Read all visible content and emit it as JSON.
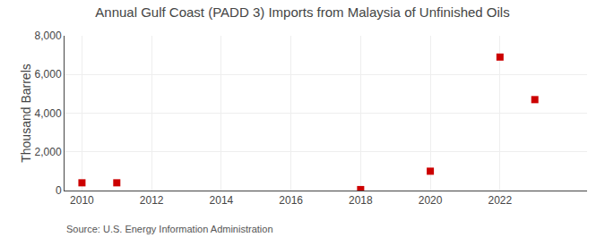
{
  "chart_data": {
    "type": "scatter",
    "title": "Annual Gulf Coast (PADD 3) Imports from Malaysia of Unfinished Oils",
    "ylabel": "Thousand Barrels",
    "x": [
      2010,
      2011,
      2018,
      2020,
      2022,
      2023
    ],
    "values": [
      400,
      400,
      50,
      1000,
      6900,
      4700
    ],
    "color": "#cc0000",
    "marker": "square",
    "xlim": [
      2009.5,
      2024.5
    ],
    "ylim": [
      0,
      8000
    ],
    "xticks": [
      2010,
      2012,
      2014,
      2016,
      2018,
      2020,
      2022
    ],
    "yticks": [
      0,
      {
        "value": 2000,
        "label": "2,000"
      },
      {
        "value": 4000,
        "label": "4,000"
      },
      {
        "value": 6000,
        "label": "6,000"
      },
      {
        "value": 8000,
        "label": "8,000"
      }
    ],
    "grid": true,
    "annotations": [
      "Source: U.S. Energy Information Administration"
    ]
  }
}
